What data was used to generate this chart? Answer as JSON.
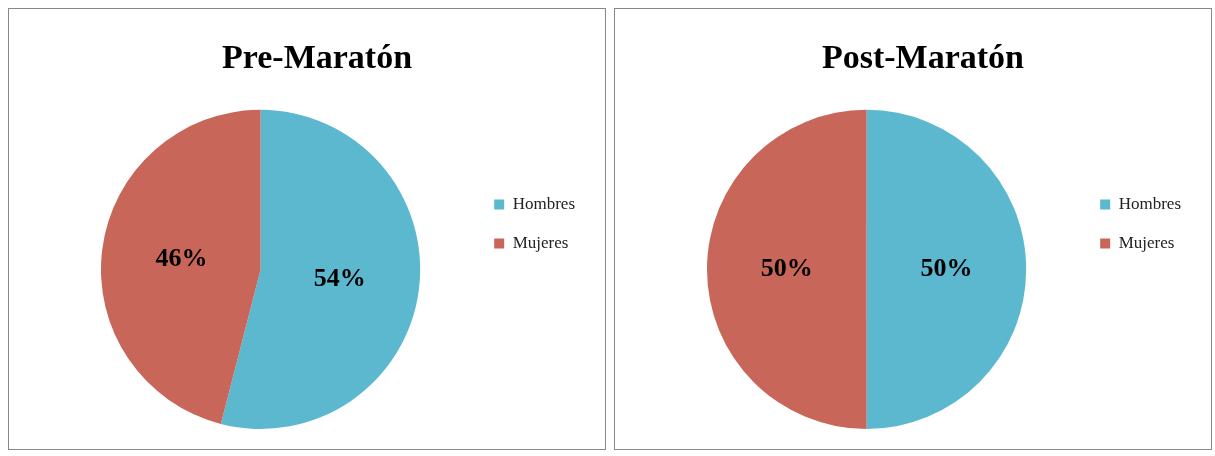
{
  "chart_data": [
    {
      "type": "pie",
      "title": "Pre-Maratón",
      "categories": [
        "Hombres",
        "Mujeres"
      ],
      "values": [
        54,
        46
      ],
      "colors": [
        "#5bb8cf",
        "#c8665a"
      ],
      "value_labels": [
        "54%",
        "46%"
      ],
      "legend": "right"
    },
    {
      "type": "pie",
      "title": "Post-Maratón",
      "categories": [
        "Hombres",
        "Mujeres"
      ],
      "values": [
        50,
        50
      ],
      "colors": [
        "#5bb8cf",
        "#c8665a"
      ],
      "value_labels": [
        "50%",
        "50%"
      ],
      "legend": "right"
    }
  ]
}
